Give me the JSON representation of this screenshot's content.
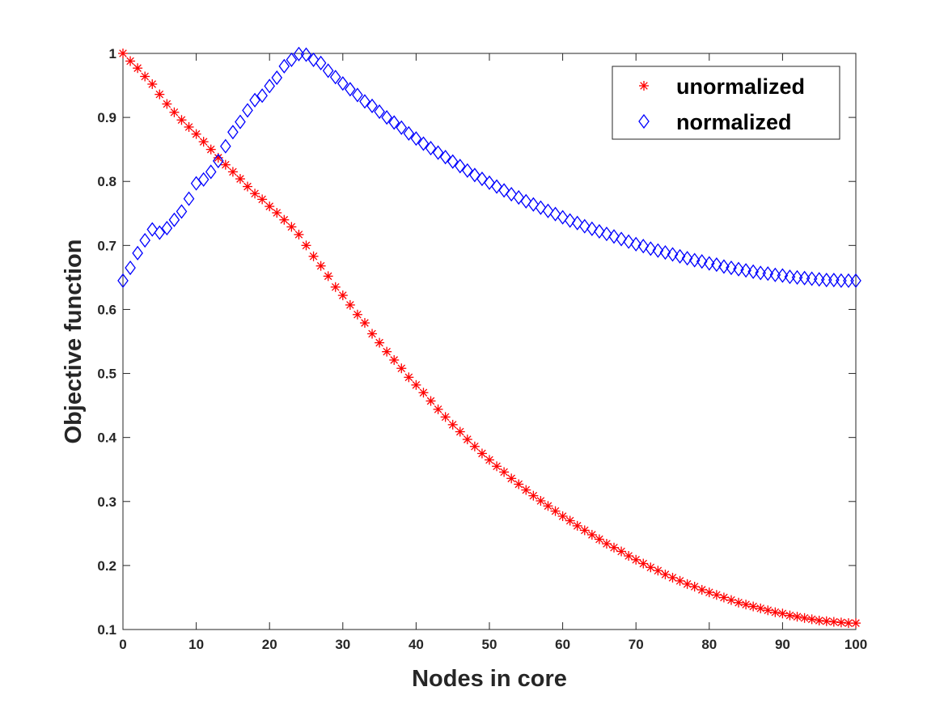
{
  "chart_data": {
    "type": "scatter",
    "xlabel": "Nodes in  core",
    "ylabel": "Objective function",
    "xlim": [
      0,
      100
    ],
    "ylim": [
      0.1,
      1
    ],
    "xticks": [
      0,
      10,
      20,
      30,
      40,
      50,
      60,
      70,
      80,
      90,
      100
    ],
    "yticks": [
      0.1,
      0.2,
      0.3,
      0.4,
      0.5,
      0.6,
      0.7,
      0.8,
      0.9,
      1
    ],
    "ytick_labels": [
      "0.1",
      "0.2",
      "0.3",
      "0.4",
      "0.5",
      "0.6",
      "0.7",
      "0.8",
      "0.9",
      "1"
    ],
    "legend_position": "top-right",
    "series": [
      {
        "name": "unormalized",
        "marker": "asterisk",
        "color": "#ff0000",
        "x": [
          0,
          1,
          2,
          3,
          4,
          5,
          6,
          7,
          8,
          9,
          10,
          11,
          12,
          13,
          14,
          15,
          16,
          17,
          18,
          19,
          20,
          21,
          22,
          23,
          24,
          25,
          26,
          27,
          28,
          29,
          30,
          31,
          32,
          33,
          34,
          35,
          36,
          37,
          38,
          39,
          40,
          41,
          42,
          43,
          44,
          45,
          46,
          47,
          48,
          49,
          50,
          51,
          52,
          53,
          54,
          55,
          56,
          57,
          58,
          59,
          60,
          61,
          62,
          63,
          64,
          65,
          66,
          67,
          68,
          69,
          70,
          71,
          72,
          73,
          74,
          75,
          76,
          77,
          78,
          79,
          80,
          81,
          82,
          83,
          84,
          85,
          86,
          87,
          88,
          89,
          90,
          91,
          92,
          93,
          94,
          95,
          96,
          97,
          98,
          99,
          100
        ],
        "values": [
          1.0,
          0.988,
          0.977,
          0.964,
          0.952,
          0.936,
          0.921,
          0.908,
          0.896,
          0.885,
          0.874,
          0.862,
          0.85,
          0.837,
          0.826,
          0.815,
          0.804,
          0.792,
          0.781,
          0.772,
          0.761,
          0.751,
          0.74,
          0.729,
          0.717,
          0.7,
          0.683,
          0.668,
          0.652,
          0.635,
          0.622,
          0.607,
          0.592,
          0.579,
          0.562,
          0.548,
          0.534,
          0.521,
          0.508,
          0.494,
          0.482,
          0.47,
          0.457,
          0.444,
          0.432,
          0.42,
          0.409,
          0.397,
          0.386,
          0.375,
          0.365,
          0.355,
          0.346,
          0.336,
          0.327,
          0.318,
          0.309,
          0.301,
          0.293,
          0.285,
          0.277,
          0.27,
          0.262,
          0.255,
          0.248,
          0.241,
          0.234,
          0.228,
          0.222,
          0.215,
          0.209,
          0.203,
          0.197,
          0.192,
          0.186,
          0.181,
          0.176,
          0.171,
          0.167,
          0.162,
          0.158,
          0.154,
          0.15,
          0.146,
          0.142,
          0.139,
          0.136,
          0.133,
          0.13,
          0.127,
          0.125,
          0.122,
          0.12,
          0.118,
          0.116,
          0.114,
          0.113,
          0.112,
          0.111,
          0.11,
          0.11
        ]
      },
      {
        "name": "normalized",
        "marker": "diamond",
        "color": "#0000ff",
        "x": [
          0,
          1,
          2,
          3,
          4,
          5,
          6,
          7,
          8,
          9,
          10,
          11,
          12,
          13,
          14,
          15,
          16,
          17,
          18,
          19,
          20,
          21,
          22,
          23,
          24,
          25,
          26,
          27,
          28,
          29,
          30,
          31,
          32,
          33,
          34,
          35,
          36,
          37,
          38,
          39,
          40,
          41,
          42,
          43,
          44,
          45,
          46,
          47,
          48,
          49,
          50,
          51,
          52,
          53,
          54,
          55,
          56,
          57,
          58,
          59,
          60,
          61,
          62,
          63,
          64,
          65,
          66,
          67,
          68,
          69,
          70,
          71,
          72,
          73,
          74,
          75,
          76,
          77,
          78,
          79,
          80,
          81,
          82,
          83,
          84,
          85,
          86,
          87,
          88,
          89,
          90,
          91,
          92,
          93,
          94,
          95,
          96,
          97,
          98,
          99,
          100
        ],
        "values": [
          0.645,
          0.665,
          0.688,
          0.708,
          0.725,
          0.72,
          0.727,
          0.74,
          0.753,
          0.773,
          0.797,
          0.803,
          0.815,
          0.832,
          0.855,
          0.877,
          0.893,
          0.911,
          0.927,
          0.934,
          0.949,
          0.962,
          0.98,
          0.99,
          0.999,
          0.998,
          0.99,
          0.985,
          0.973,
          0.963,
          0.953,
          0.944,
          0.935,
          0.925,
          0.918,
          0.909,
          0.9,
          0.892,
          0.884,
          0.875,
          0.867,
          0.859,
          0.852,
          0.845,
          0.838,
          0.831,
          0.824,
          0.817,
          0.81,
          0.804,
          0.798,
          0.792,
          0.786,
          0.78,
          0.775,
          0.769,
          0.764,
          0.759,
          0.754,
          0.749,
          0.744,
          0.739,
          0.735,
          0.73,
          0.726,
          0.722,
          0.718,
          0.714,
          0.71,
          0.706,
          0.702,
          0.699,
          0.695,
          0.692,
          0.689,
          0.686,
          0.683,
          0.68,
          0.677,
          0.675,
          0.672,
          0.67,
          0.667,
          0.665,
          0.663,
          0.661,
          0.659,
          0.657,
          0.656,
          0.654,
          0.653,
          0.651,
          0.65,
          0.649,
          0.648,
          0.647,
          0.646,
          0.646,
          0.645,
          0.645,
          0.645
        ]
      }
    ]
  }
}
